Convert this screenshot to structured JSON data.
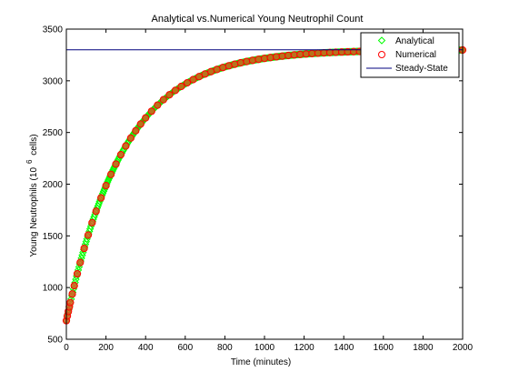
{
  "chart_data": {
    "type": "scatter",
    "title": "Analytical vs.Numerical Young Neutrophil Count",
    "xlabel": "Time (minutes)",
    "ylabel_main": "Young Neutrophils (10",
    "ylabel_exp": "6",
    "ylabel_tail": " cells)",
    "xlim": [
      0,
      2000
    ],
    "ylim": [
      500,
      3500
    ],
    "x_ticks": [
      0,
      200,
      400,
      600,
      800,
      1000,
      1200,
      1400,
      1600,
      1800,
      2000
    ],
    "y_ticks": [
      500,
      1000,
      1500,
      2000,
      2500,
      3000,
      3500
    ],
    "grid": false,
    "legend_position": "top-right",
    "curve_model": {
      "steady_state": 3300,
      "initial": 680,
      "rate_per_minute": 0.00345
    },
    "series": [
      {
        "name": "Analytical",
        "marker": "diamond",
        "color": "#00ff00",
        "sample_step": 4
      },
      {
        "name": "Numerical",
        "marker": "circle",
        "edge_color": "#ff0000",
        "fill_color": "#d85a1e",
        "x_values": [
          0,
          5,
          10,
          15,
          20,
          30,
          40,
          55,
          70,
          90,
          110,
          130,
          150,
          175,
          200,
          225,
          250,
          275,
          300,
          325,
          350,
          375,
          400,
          430,
          460,
          490,
          520,
          550,
          580,
          610,
          640,
          670,
          700,
          730,
          760,
          790,
          820,
          850,
          880,
          910,
          940,
          970,
          1000,
          1030,
          1060,
          1090,
          1120,
          1150,
          1180,
          1210,
          1240,
          1270,
          1300,
          1330,
          1360,
          1390,
          1420,
          1450,
          1480,
          2000
        ]
      },
      {
        "name": "Steady-State",
        "marker": "line",
        "color": "#00007f",
        "value": 3300
      }
    ]
  },
  "colors": {
    "axes": "#000000",
    "background": "#ffffff",
    "analytical": "#00ff00",
    "numerical_edge": "#ff0000",
    "numerical_fill": "#d85a1e",
    "steady_state": "#00007f"
  }
}
